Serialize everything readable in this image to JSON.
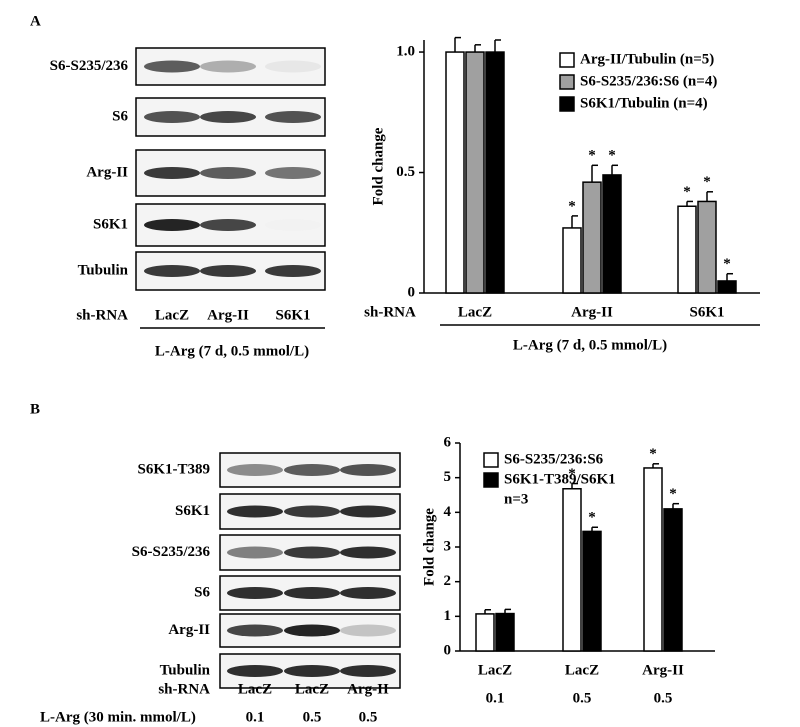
{
  "panels": [
    "A",
    "B"
  ],
  "blots": [
    {
      "rows": [
        "S6-S235/236",
        "S6",
        "Arg-II",
        "S6K1",
        "Tubulin"
      ],
      "lanes_label": "sh-RNA",
      "lanes": [
        "LacZ",
        "Arg-II",
        "S6K1"
      ],
      "treatment": "L-Arg (7 d, 0.5 mmol/L)"
    },
    {
      "rows": [
        "S6K1-T389",
        "S6K1",
        "S6-S235/236",
        "S6",
        "Arg-II",
        "Tubulin"
      ],
      "lanes_label": "sh-RNA",
      "lanes": [
        "LacZ",
        "LacZ",
        "Arg-II"
      ],
      "treatment": "L-Arg (30 min. mmol/L)",
      "treatment_values": [
        "0.1",
        "0.5",
        "0.5"
      ]
    }
  ],
  "chart_data": [
    {
      "type": "bar",
      "ylabel": "Fold change",
      "categories": [
        "LacZ",
        "Arg-II",
        "S6K1"
      ],
      "x_row_label": "sh-RNA",
      "treatment": "L-Arg (7 d, 0.5 mmol/L)",
      "ylim": [
        0,
        1.05
      ],
      "yticks": [
        0,
        {
          "value": 0.5,
          "label": "0.5"
        },
        {
          "value": 1,
          "label": "1.0"
        }
      ],
      "significance_mark": "*",
      "series": [
        {
          "name": "Arg-II/Tubulin (n=5)",
          "color": "#ffffff",
          "values": [
            1.0,
            0.27,
            0.36
          ],
          "errors": [
            0.06,
            0.05,
            0.02
          ],
          "significant": [
            false,
            true,
            true
          ]
        },
        {
          "name": "S6-S235/236:S6 (n=4)",
          "color": "#a0a0a0",
          "values": [
            1.0,
            0.46,
            0.38
          ],
          "errors": [
            0.03,
            0.07,
            0.04
          ],
          "significant": [
            false,
            true,
            true
          ]
        },
        {
          "name": "S6K1/Tubulin (n=4)",
          "color": "#000000",
          "values": [
            1.0,
            0.49,
            0.05
          ],
          "errors": [
            0.05,
            0.04,
            0.03
          ],
          "significant": [
            false,
            true,
            true
          ]
        }
      ]
    },
    {
      "type": "bar",
      "ylabel": "Fold change",
      "categories": [
        "LacZ",
        "LacZ",
        "Arg-II"
      ],
      "categories2": [
        "0.1",
        "0.5",
        "0.5"
      ],
      "legend_note": "n=3",
      "ylim": [
        0,
        6
      ],
      "yticks": [
        0,
        1,
        2,
        3,
        4,
        5,
        6
      ],
      "significance_mark": "*",
      "series": [
        {
          "name": "S6-S235/236:S6",
          "color": "#ffffff",
          "values": [
            1.07,
            4.68,
            5.28
          ],
          "errors": [
            0.12,
            0.15,
            0.12
          ],
          "significant": [
            false,
            true,
            true
          ]
        },
        {
          "name": "S6K1-T389/S6K1",
          "color": "#000000",
          "values": [
            1.08,
            3.45,
            4.1
          ],
          "errors": [
            0.12,
            0.12,
            0.15
          ],
          "significant": [
            false,
            true,
            true
          ]
        }
      ]
    }
  ]
}
